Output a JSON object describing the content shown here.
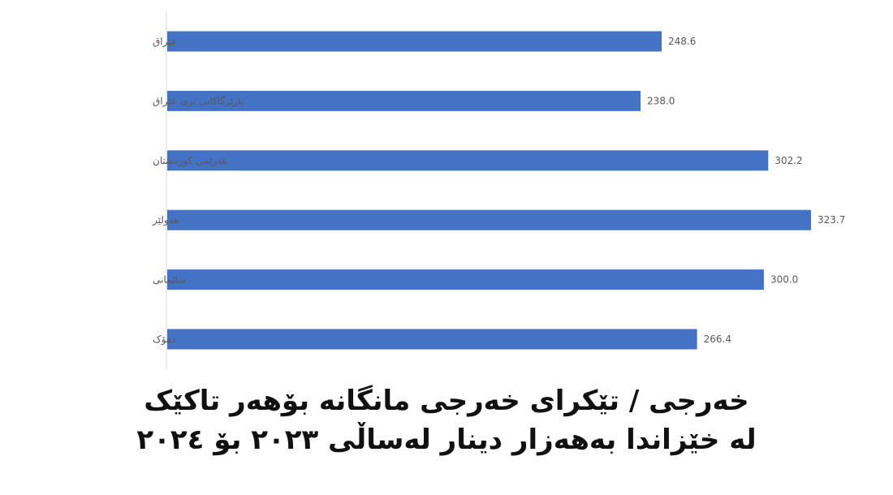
{
  "chart_data": {
    "type": "bar",
    "orientation": "horizontal",
    "categories": [
      "عێراق",
      "پارێزگاکانی تری عێراق",
      "هەرێمی کوردستان",
      "هەولێر",
      "سلێمانی",
      "دهۆک"
    ],
    "values": [
      248.6,
      238.0,
      302.2,
      323.7,
      300.0,
      266.4
    ],
    "value_labels": [
      "248.6",
      "238.0",
      "302.2",
      "323.7",
      "300.0",
      "266.4"
    ],
    "title_lines": [
      "خەرجی / تێکرای خەرجی مانگانە بۆهەر تاکێک",
      "لە خێزاندا بەهەزار دینار لەساڵی ٢٠٢٣ بۆ ٢٠٢٤"
    ],
    "xlim": [
      0,
      330
    ],
    "xaxis_visible": false,
    "grid": false,
    "legend": "none",
    "bar_color": "#4472C4",
    "axis_line_color": "#d9d9d9",
    "label_color": "#595959"
  }
}
